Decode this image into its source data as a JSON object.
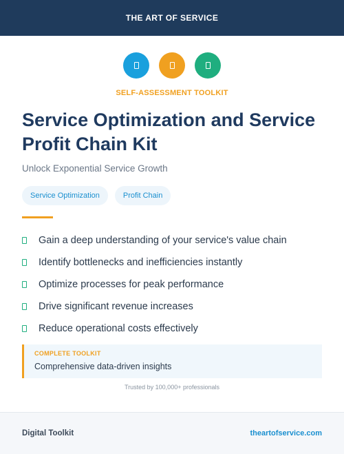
{
  "header": {
    "brand": "THE ART OF SERVICE"
  },
  "icons": [
    {
      "name": "lightbulb-icon",
      "color": "#1aa0dd"
    },
    {
      "name": "gauge-icon",
      "color": "#f0a020"
    },
    {
      "name": "trend-icon",
      "color": "#1fae7f"
    }
  ],
  "kicker": "SELF-ASSESSMENT TOOLKIT",
  "title": "Service Optimization and Service Profit Chain Kit",
  "subtitle": "Unlock Exponential Service Growth",
  "tags": [
    "Service Optimization",
    "Profit Chain"
  ],
  "benefits": [
    "Gain a deep understanding of your service's value chain",
    "Identify bottlenecks and inefficiencies instantly",
    "Optimize processes for peak performance",
    "Drive significant revenue increases",
    "Reduce operational costs effectively"
  ],
  "callout": {
    "label": "COMPLETE TOOLKIT",
    "text": "Comprehensive data-driven insights"
  },
  "trusted": "Trusted by 100,000+ professionals",
  "footer": {
    "left": "Digital Toolkit",
    "right": "theartofservice.com"
  },
  "colors": {
    "navy": "#1f3b5c",
    "accent": "#f0a020",
    "blue": "#1a8fcf",
    "green": "#1fae7f"
  }
}
